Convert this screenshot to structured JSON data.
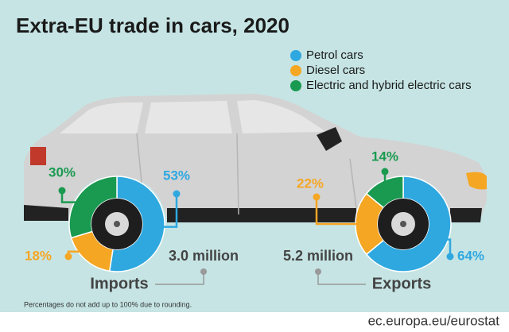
{
  "title": "Extra-EU trade in cars, 2020",
  "chart_data": [
    {
      "type": "donut",
      "title": "Imports",
      "annotation": "3.0 million",
      "categories": [
        "Petrol cars",
        "Diesel cars",
        "Electric and hybrid electric cars"
      ],
      "colors": [
        "#2fa8e0",
        "#f5a623",
        "#1a9a50"
      ],
      "values": [
        53,
        18,
        30
      ],
      "value_labels": [
        "53%",
        "18%",
        "30%"
      ]
    },
    {
      "type": "donut",
      "title": "Exports",
      "annotation": "5.2 million",
      "categories": [
        "Petrol cars",
        "Diesel cars",
        "Electric and hybrid electric cars"
      ],
      "colors": [
        "#2fa8e0",
        "#f5a623",
        "#1a9a50"
      ],
      "values": [
        64,
        22,
        14
      ],
      "value_labels": [
        "64%",
        "22%",
        "14%"
      ]
    }
  ],
  "footnote": "Percentages do not add up to 100% due to rounding.",
  "source": "ec.europa.eu/eurostat"
}
